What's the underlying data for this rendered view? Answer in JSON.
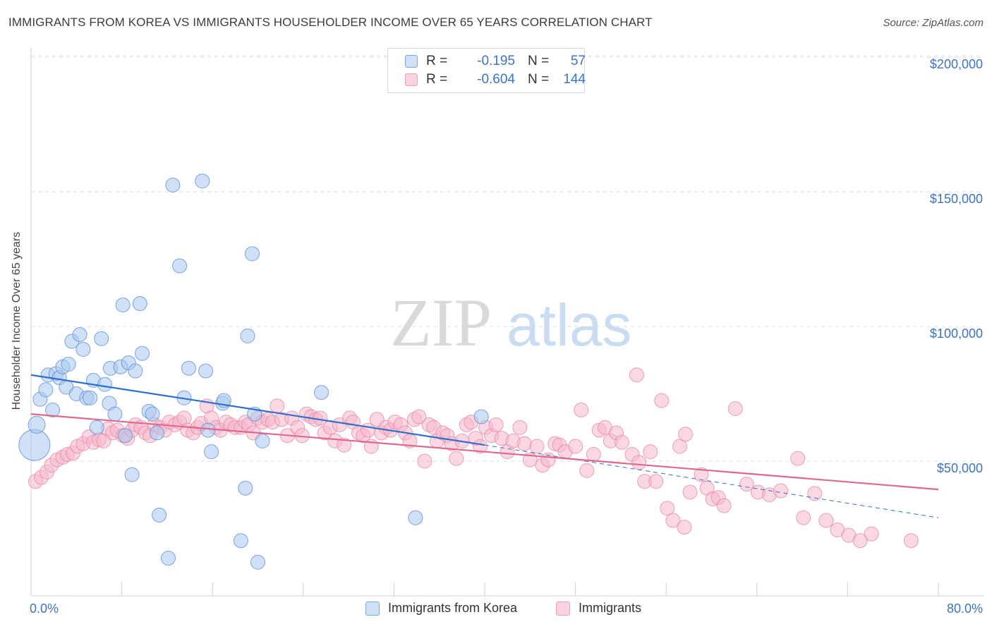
{
  "title": "IMMIGRANTS FROM KOREA VS IMMIGRANTS HOUSEHOLDER INCOME OVER 65 YEARS CORRELATION CHART",
  "source": "Source: ZipAtlas.com",
  "watermark": {
    "zip": "ZIP",
    "atlas": "atlas"
  },
  "legend_top": {
    "rows": [
      {
        "r_label": "R =",
        "r_value": "-0.195",
        "n_label": "N =",
        "n_value": "57",
        "color": "#a9c8f0"
      },
      {
        "r_label": "R =",
        "r_value": "-0.604",
        "n_label": "N =",
        "n_value": "144",
        "color": "#f5b8cb"
      }
    ]
  },
  "legend_bottom": [
    {
      "label": "Immigrants from Korea",
      "color": "#a9c8f0"
    },
    {
      "label": "Immigrants",
      "color": "#f5b8cb"
    }
  ],
  "x_axis": {
    "min_label": "0.0%",
    "max_label": "80.0%"
  },
  "chart_data": {
    "type": "scatter",
    "ylabel": "Householder Income Over 65 years",
    "xlim": [
      0,
      80
    ],
    "ylim": [
      0,
      205000
    ],
    "y_ticks": [
      {
        "value": 50000,
        "label": "$50,000"
      },
      {
        "value": 100000,
        "label": "$100,000"
      },
      {
        "value": 150000,
        "label": "$150,000"
      },
      {
        "value": 200000,
        "label": "$200,000"
      }
    ],
    "grid": true,
    "series": [
      {
        "name": "Immigrants from Korea",
        "color": "#a9c8f0",
        "stroke": "#5b8fd4",
        "trend": {
          "x0": 0,
          "y0": 82000,
          "x1": 40,
          "y1": 56000,
          "dash_to_x": 80,
          "dash_to_y": 29000,
          "color": "#2f6fcc"
        },
        "points": [
          [
            0.3,
            56000
          ],
          [
            0.5,
            63500
          ],
          [
            0.8,
            73000
          ],
          [
            1.3,
            76500
          ],
          [
            1.5,
            82000
          ],
          [
            1.9,
            69000
          ],
          [
            2.2,
            82500
          ],
          [
            2.5,
            81000
          ],
          [
            2.8,
            85000
          ],
          [
            3.1,
            77500
          ],
          [
            3.3,
            86000
          ],
          [
            3.6,
            94500
          ],
          [
            4.0,
            75000
          ],
          [
            4.3,
            97000
          ],
          [
            4.6,
            91500
          ],
          [
            4.9,
            73500
          ],
          [
            5.2,
            73500
          ],
          [
            5.5,
            80000
          ],
          [
            5.8,
            62500
          ],
          [
            6.2,
            95500
          ],
          [
            6.5,
            78500
          ],
          [
            6.9,
            71500
          ],
          [
            7.0,
            84500
          ],
          [
            7.4,
            67500
          ],
          [
            7.9,
            85000
          ],
          [
            8.1,
            108000
          ],
          [
            8.3,
            59500
          ],
          [
            8.6,
            86500
          ],
          [
            8.9,
            45000
          ],
          [
            9.2,
            83500
          ],
          [
            9.6,
            108500
          ],
          [
            9.8,
            90000
          ],
          [
            10.4,
            68500
          ],
          [
            10.7,
            67500
          ],
          [
            11.1,
            60500
          ],
          [
            11.3,
            30000
          ],
          [
            12.1,
            14000
          ],
          [
            12.5,
            152500
          ],
          [
            13.1,
            122500
          ],
          [
            13.5,
            73500
          ],
          [
            13.9,
            84500
          ],
          [
            15.1,
            154000
          ],
          [
            15.4,
            83500
          ],
          [
            15.6,
            61500
          ],
          [
            15.9,
            53500
          ],
          [
            16.9,
            71500
          ],
          [
            17.0,
            72500
          ],
          [
            18.5,
            20500
          ],
          [
            18.9,
            40000
          ],
          [
            19.1,
            96500
          ],
          [
            19.5,
            127000
          ],
          [
            19.7,
            67500
          ],
          [
            20.0,
            12500
          ],
          [
            20.4,
            57500
          ],
          [
            25.6,
            75500
          ],
          [
            33.9,
            29000
          ],
          [
            39.7,
            66500
          ]
        ]
      },
      {
        "name": "Immigrants",
        "color": "#f5b8cb",
        "stroke": "#e58aa8",
        "trend": {
          "x0": 0,
          "y0": 67500,
          "x1": 80,
          "y1": 39500,
          "color": "#e0688f"
        },
        "points": [
          [
            0.4,
            42500
          ],
          [
            0.9,
            44000
          ],
          [
            1.4,
            46000
          ],
          [
            1.8,
            48500
          ],
          [
            2.3,
            50500
          ],
          [
            2.8,
            51500
          ],
          [
            3.2,
            52500
          ],
          [
            3.7,
            53000
          ],
          [
            4.1,
            55500
          ],
          [
            4.6,
            56500
          ],
          [
            5.1,
            59000
          ],
          [
            5.5,
            57000
          ],
          [
            6.0,
            58000
          ],
          [
            6.4,
            57500
          ],
          [
            6.8,
            62000
          ],
          [
            7.2,
            60500
          ],
          [
            7.6,
            61500
          ],
          [
            8.1,
            59500
          ],
          [
            8.5,
            58500
          ],
          [
            8.9,
            61500
          ],
          [
            9.2,
            63500
          ],
          [
            9.7,
            62500
          ],
          [
            10.1,
            60500
          ],
          [
            10.5,
            59500
          ],
          [
            10.9,
            63500
          ],
          [
            11.4,
            62500
          ],
          [
            11.8,
            61500
          ],
          [
            12.2,
            64500
          ],
          [
            12.7,
            63500
          ],
          [
            13.1,
            64500
          ],
          [
            13.5,
            66000
          ],
          [
            13.8,
            61500
          ],
          [
            14.3,
            60500
          ],
          [
            14.7,
            62500
          ],
          [
            15.0,
            64000
          ],
          [
            15.5,
            70500
          ],
          [
            15.9,
            66000
          ],
          [
            16.3,
            62500
          ],
          [
            16.7,
            61500
          ],
          [
            17.2,
            64500
          ],
          [
            17.6,
            63500
          ],
          [
            18.0,
            62500
          ],
          [
            18.5,
            62500
          ],
          [
            18.9,
            64500
          ],
          [
            19.2,
            63500
          ],
          [
            19.6,
            60500
          ],
          [
            20.0,
            66000
          ],
          [
            20.4,
            64500
          ],
          [
            20.9,
            65500
          ],
          [
            21.3,
            64500
          ],
          [
            21.7,
            70500
          ],
          [
            22.1,
            65500
          ],
          [
            22.6,
            59500
          ],
          [
            23.0,
            66000
          ],
          [
            23.5,
            62500
          ],
          [
            23.9,
            59500
          ],
          [
            24.3,
            67500
          ],
          [
            24.7,
            66500
          ],
          [
            25.1,
            65500
          ],
          [
            25.5,
            66000
          ],
          [
            25.9,
            60500
          ],
          [
            26.4,
            62500
          ],
          [
            26.8,
            57500
          ],
          [
            27.2,
            63500
          ],
          [
            27.6,
            56000
          ],
          [
            28.1,
            66000
          ],
          [
            28.4,
            64500
          ],
          [
            28.9,
            60500
          ],
          [
            29.3,
            59500
          ],
          [
            29.7,
            61500
          ],
          [
            30.0,
            55500
          ],
          [
            30.5,
            65500
          ],
          [
            30.9,
            60500
          ],
          [
            31.3,
            62500
          ],
          [
            31.7,
            61500
          ],
          [
            32.1,
            64500
          ],
          [
            32.6,
            63500
          ],
          [
            33.0,
            60500
          ],
          [
            33.4,
            57500
          ],
          [
            33.8,
            65500
          ],
          [
            34.2,
            66500
          ],
          [
            34.7,
            50000
          ],
          [
            35.1,
            63500
          ],
          [
            35.5,
            62500
          ],
          [
            35.8,
            57500
          ],
          [
            36.3,
            60500
          ],
          [
            36.7,
            59500
          ],
          [
            37.1,
            56500
          ],
          [
            37.5,
            51000
          ],
          [
            38.0,
            57500
          ],
          [
            38.4,
            63500
          ],
          [
            38.8,
            64500
          ],
          [
            39.2,
            58500
          ],
          [
            39.6,
            55500
          ],
          [
            40.1,
            62500
          ],
          [
            40.6,
            59500
          ],
          [
            41.0,
            63500
          ],
          [
            41.5,
            58500
          ],
          [
            42.0,
            53500
          ],
          [
            42.5,
            57500
          ],
          [
            43.1,
            62500
          ],
          [
            43.5,
            56500
          ],
          [
            44.0,
            50500
          ],
          [
            44.6,
            55500
          ],
          [
            45.1,
            48500
          ],
          [
            45.6,
            50500
          ],
          [
            46.2,
            56500
          ],
          [
            46.6,
            56000
          ],
          [
            47.1,
            53500
          ],
          [
            48.0,
            55500
          ],
          [
            48.5,
            69000
          ],
          [
            49.0,
            46500
          ],
          [
            49.6,
            52500
          ],
          [
            50.1,
            61500
          ],
          [
            50.6,
            62500
          ],
          [
            51.1,
            57500
          ],
          [
            51.6,
            60500
          ],
          [
            52.1,
            57000
          ],
          [
            53.0,
            52500
          ],
          [
            53.6,
            49500
          ],
          [
            54.1,
            42500
          ],
          [
            54.6,
            53500
          ],
          [
            55.1,
            42500
          ],
          [
            55.6,
            72500
          ],
          [
            56.1,
            32500
          ],
          [
            56.6,
            28000
          ],
          [
            57.2,
            55500
          ],
          [
            57.6,
            25500
          ],
          [
            58.1,
            38500
          ],
          [
            59.1,
            45000
          ],
          [
            59.6,
            40000
          ],
          [
            60.1,
            36000
          ],
          [
            60.6,
            36500
          ],
          [
            61.1,
            33500
          ],
          [
            62.1,
            69500
          ],
          [
            63.1,
            41500
          ],
          [
            64.1,
            38500
          ],
          [
            65.1,
            37500
          ],
          [
            66.1,
            39000
          ],
          [
            67.6,
            51000
          ],
          [
            68.1,
            29000
          ],
          [
            69.1,
            38000
          ],
          [
            70.1,
            28000
          ],
          [
            71.1,
            24500
          ],
          [
            72.1,
            22500
          ],
          [
            73.1,
            20500
          ],
          [
            74.1,
            23000
          ],
          [
            77.6,
            20500
          ],
          [
            53.4,
            82000
          ],
          [
            57.7,
            60000
          ]
        ]
      }
    ]
  }
}
